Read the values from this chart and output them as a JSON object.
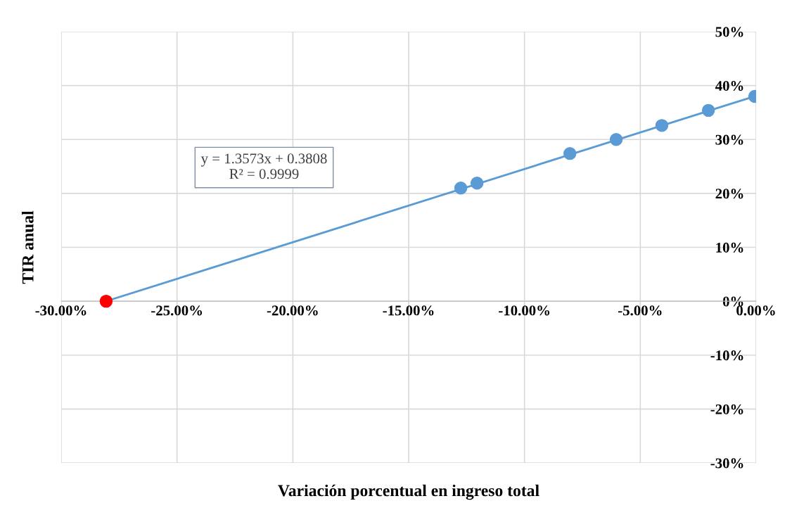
{
  "chart_data": {
    "type": "scatter",
    "xlabel": "Variación porcentual en ingreso total",
    "ylabel": "TIR anual",
    "series": [
      {
        "type": "line",
        "color": "#5b9bd5",
        "x": [
          -28.06,
          0
        ],
        "values": [
          0,
          38.1
        ]
      },
      {
        "colors": [
          "#ff0000",
          "#5b9bd5",
          "#5b9bd5",
          "#5b9bd5",
          "#5b9bd5",
          "#5b9bd5",
          "#5b9bd5",
          "#5b9bd5"
        ],
        "x": [
          -28.06,
          -12.75,
          -12.05,
          -8.04,
          -6.04,
          -4.07,
          -2.06,
          -0.06
        ],
        "values": [
          0,
          21.0,
          21.9,
          27.4,
          30.0,
          32.6,
          35.4,
          38.0
        ],
        "marker": "circle"
      }
    ],
    "xlim": [
      -30,
      0
    ],
    "xticks": [
      {
        "value": -30,
        "label": "-30.00%"
      },
      {
        "value": -25,
        "label": "-25.00%"
      },
      {
        "value": -20,
        "label": "-20.00%"
      },
      {
        "value": -15,
        "label": "-15.00%"
      },
      {
        "value": -10,
        "label": "-10.00%"
      },
      {
        "value": -5,
        "label": "-5.00%"
      },
      {
        "value": 0,
        "label": "0.00%"
      }
    ],
    "ylim": [
      -30,
      50
    ],
    "yticks": [
      {
        "value": -30,
        "label": "-30%"
      },
      {
        "value": -20,
        "label": "-20%"
      },
      {
        "value": -10,
        "label": "-10%"
      },
      {
        "value": 0,
        "label": "0%"
      },
      {
        "value": 10,
        "label": "10%"
      },
      {
        "value": 20,
        "label": "20%"
      },
      {
        "value": 30,
        "label": "30%"
      },
      {
        "value": 40,
        "label": "40%"
      },
      {
        "value": 50,
        "label": "50%"
      }
    ],
    "grid": true,
    "legend": false,
    "annotations": [
      "y = 1.3573x + 0.3808\nR² = 0.9999"
    ]
  }
}
